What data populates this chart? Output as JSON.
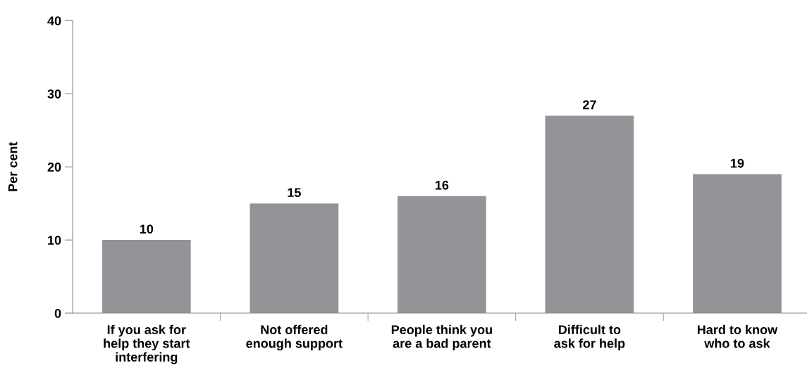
{
  "chart_data": {
    "type": "bar",
    "ylabel": "Per cent",
    "categories": [
      "If you ask for\nhelp they start\ninterfering",
      "Not offered\nenough support",
      "People think you\nare a bad parent",
      "Difficult to\nask for help",
      "Hard to know\nwho to ask"
    ],
    "values": [
      10,
      15,
      16,
      27,
      19
    ],
    "color": "#929497",
    "ylim": [
      0,
      40
    ],
    "yticks": [
      0,
      10,
      20,
      30,
      40
    ],
    "grid": false,
    "data_labels": true
  }
}
